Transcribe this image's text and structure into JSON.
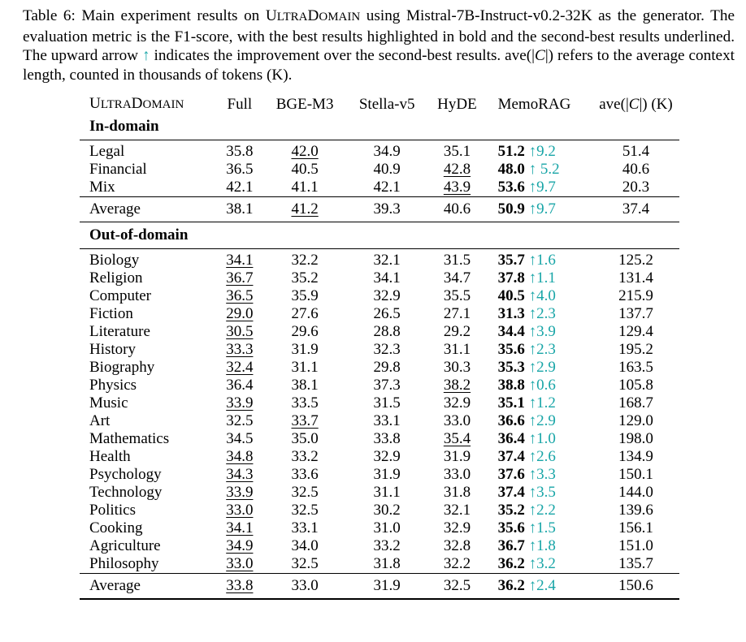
{
  "caption": {
    "part1": "Table 6: Main experiment results on ",
    "dataset_first": "U",
    "dataset_rest1": "LTRA",
    "dataset_mid": "D",
    "dataset_rest2": "OMAIN",
    "part2": " using Mistral-7B-Instruct-v0.2-32K as the generator. The evaluation metric is the F1-score, with the best results highlighted in bold and the second-best results underlined. The upward arrow ",
    "arrow": "↑",
    "part3": " indicates the improvement over the second-best results. ave(|",
    "cal_c": "C",
    "part4": "|) refers to the average context length, counted in thousands of tokens (K)."
  },
  "table": {
    "headers": {
      "dataset_first": "U",
      "dataset_rest1": "LTRA",
      "dataset_mid": "D",
      "dataset_rest2": "OMAIN",
      "full": "Full",
      "bge": "BGE-M3",
      "stella": "Stella-v5",
      "hyde": "HyDE",
      "memorag": "MemoRAG",
      "ave_pre": "ave(|",
      "ave_c": "C",
      "ave_post": "|) (K)"
    },
    "sections": {
      "in_domain": "In-domain",
      "out_domain": "Out-of-domain"
    },
    "in_domain_rows": [
      {
        "name": "Legal",
        "full": "35.8",
        "bge": "42.0",
        "stella": "34.9",
        "hyde": "35.1",
        "memo": "51.2",
        "imp": "↑9.2",
        "ave": "51.4",
        "second": "bge"
      },
      {
        "name": "Financial",
        "full": "36.5",
        "bge": "40.5",
        "stella": "40.9",
        "hyde": "42.8",
        "memo": "48.0",
        "imp": "↑ 5.2",
        "ave": "40.6",
        "second": "hyde"
      },
      {
        "name": "Mix",
        "full": "42.1",
        "bge": "41.1",
        "stella": "42.1",
        "hyde": "43.9",
        "memo": "53.6",
        "imp": "↑9.7",
        "ave": "20.3",
        "second": "hyde"
      }
    ],
    "in_domain_avg": {
      "name": "Average",
      "full": "38.1",
      "bge": "41.2",
      "stella": "39.3",
      "hyde": "40.6",
      "memo": "50.9",
      "imp": "↑9.7",
      "ave": "37.4",
      "second": "bge"
    },
    "out_domain_rows": [
      {
        "name": "Biology",
        "full": "34.1",
        "bge": "32.2",
        "stella": "32.1",
        "hyde": "31.5",
        "memo": "35.7",
        "imp": "↑1.6",
        "ave": "125.2",
        "second": "full"
      },
      {
        "name": "Religion",
        "full": "36.7",
        "bge": "35.2",
        "stella": "34.1",
        "hyde": "34.7",
        "memo": "37.8",
        "imp": "↑1.1",
        "ave": "131.4",
        "second": "full"
      },
      {
        "name": "Computer",
        "full": "36.5",
        "bge": "35.9",
        "stella": "32.9",
        "hyde": "35.5",
        "memo": "40.5",
        "imp": "↑4.0",
        "ave": "215.9",
        "second": "full"
      },
      {
        "name": "Fiction",
        "full": "29.0",
        "bge": "27.6",
        "stella": "26.5",
        "hyde": "27.1",
        "memo": "31.3",
        "imp": "↑2.3",
        "ave": "137.7",
        "second": "full"
      },
      {
        "name": "Literature",
        "full": "30.5",
        "bge": "29.6",
        "stella": "28.8",
        "hyde": "29.2",
        "memo": "34.4",
        "imp": "↑3.9",
        "ave": "129.4",
        "second": "full"
      },
      {
        "name": "History",
        "full": "33.3",
        "bge": "31.9",
        "stella": "32.3",
        "hyde": "31.1",
        "memo": "35.6",
        "imp": "↑2.3",
        "ave": "195.2",
        "second": "full"
      },
      {
        "name": "Biography",
        "full": "32.4",
        "bge": "31.1",
        "stella": "29.8",
        "hyde": "30.3",
        "memo": "35.3",
        "imp": "↑2.9",
        "ave": "163.5",
        "second": "full"
      },
      {
        "name": "Physics",
        "full": "36.4",
        "bge": "38.1",
        "stella": "37.3",
        "hyde": "38.2",
        "memo": "38.8",
        "imp": "↑0.6",
        "ave": "105.8",
        "second": "hyde"
      },
      {
        "name": "Music",
        "full": "33.9",
        "bge": "33.5",
        "stella": "31.5",
        "hyde": "32.9",
        "memo": "35.1",
        "imp": "↑1.2",
        "ave": "168.7",
        "second": "full"
      },
      {
        "name": "Art",
        "full": "32.5",
        "bge": "33.7",
        "stella": "33.1",
        "hyde": "33.0",
        "memo": "36.6",
        "imp": "↑2.9",
        "ave": "129.0",
        "second": "bge"
      },
      {
        "name": "Mathematics",
        "full": "34.5",
        "bge": "35.0",
        "stella": "33.8",
        "hyde": "35.4",
        "memo": "36.4",
        "imp": "↑1.0",
        "ave": "198.0",
        "second": "hyde"
      },
      {
        "name": "Health",
        "full": "34.8",
        "bge": "33.2",
        "stella": "32.9",
        "hyde": "31.9",
        "memo": "37.4",
        "imp": "↑2.6",
        "ave": "134.9",
        "second": "full"
      },
      {
        "name": "Psychology",
        "full": "34.3",
        "bge": "33.6",
        "stella": "31.9",
        "hyde": "33.0",
        "memo": "37.6",
        "imp": "↑3.3",
        "ave": "150.1",
        "second": "full"
      },
      {
        "name": "Technology",
        "full": "33.9",
        "bge": "32.5",
        "stella": "31.1",
        "hyde": "31.8",
        "memo": "37.4",
        "imp": "↑3.5",
        "ave": "144.0",
        "second": "full"
      },
      {
        "name": "Politics",
        "full": "33.0",
        "bge": "32.5",
        "stella": "30.2",
        "hyde": "32.1",
        "memo": "35.2",
        "imp": "↑2.2",
        "ave": "139.6",
        "second": "full"
      },
      {
        "name": "Cooking",
        "full": "34.1",
        "bge": "33.1",
        "stella": "31.0",
        "hyde": "32.9",
        "memo": "35.6",
        "imp": "↑1.5",
        "ave": "156.1",
        "second": "full"
      },
      {
        "name": "Agriculture",
        "full": "34.9",
        "bge": "34.0",
        "stella": "33.2",
        "hyde": "32.8",
        "memo": "36.7",
        "imp": "↑1.8",
        "ave": "151.0",
        "second": "full"
      },
      {
        "name": "Philosophy",
        "full": "33.0",
        "bge": "32.5",
        "stella": "31.8",
        "hyde": "32.2",
        "memo": "36.2",
        "imp": "↑3.2",
        "ave": "135.7",
        "second": "full"
      }
    ],
    "out_domain_avg": {
      "name": "Average",
      "full": "33.8",
      "bge": "33.0",
      "stella": "31.9",
      "hyde": "32.5",
      "memo": "36.2",
      "imp": "↑2.4",
      "ave": "150.6",
      "second": "full"
    },
    "colors": {
      "improvement": "#18a5a7"
    }
  }
}
